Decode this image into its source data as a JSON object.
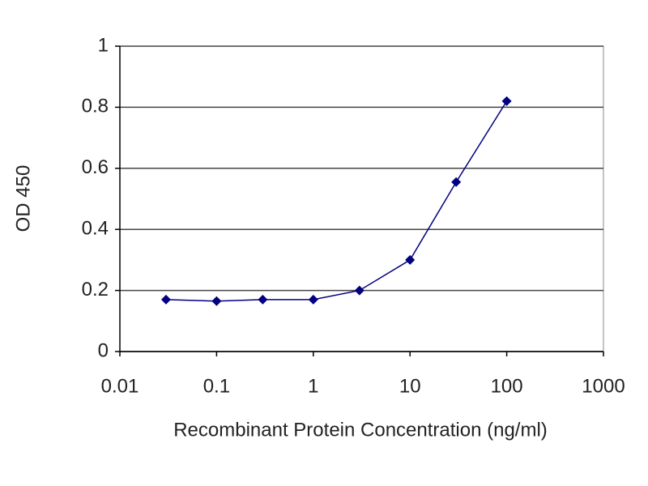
{
  "chart_data": {
    "type": "line",
    "x_label": "Recombinant Protein Concentration (ng/ml)",
    "y_label": "OD 450",
    "x": [
      0.03,
      0.1,
      0.3,
      1,
      3,
      10,
      30,
      100
    ],
    "series": [
      {
        "color": "#000080",
        "values": [
          0.17,
          0.165,
          0.17,
          0.17,
          0.2,
          0.3,
          0.555,
          0.82
        ]
      }
    ],
    "xscale": "log",
    "xlim": [
      0.01,
      1000
    ],
    "xticks": [
      0.01,
      0.1,
      1,
      10,
      100,
      1000
    ],
    "ylim": [
      0,
      1
    ],
    "yticks": [
      0,
      0.2,
      0.4,
      0.6,
      0.8,
      1
    ],
    "grid": true
  }
}
